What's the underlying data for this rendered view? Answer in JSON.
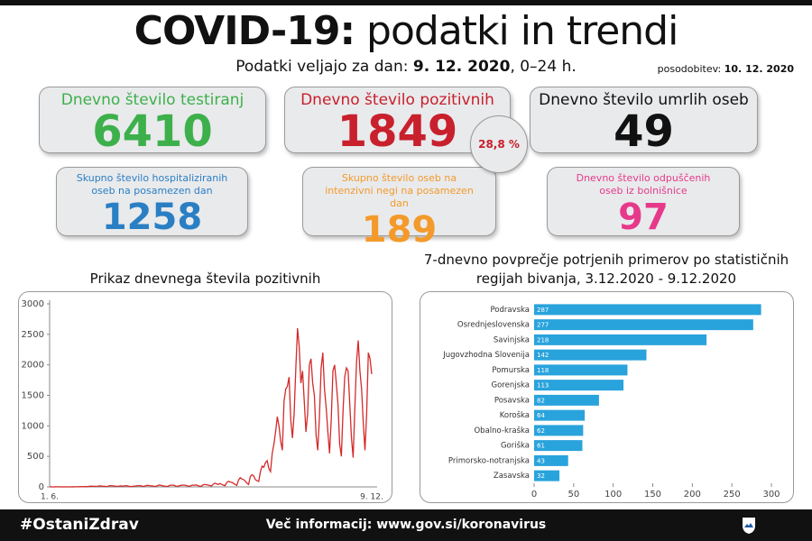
{
  "header": {
    "title_bold": "COVID-19:",
    "title_rest": "podatki in trendi",
    "subtitle_prefix": "Podatki veljajo za dan:",
    "subtitle_date": "9. 12. 2020",
    "subtitle_suffix": ", 0–24 h.",
    "updated_prefix": "posodobitev:",
    "updated_date": "10. 12. 2020"
  },
  "cards": [
    {
      "label": "Dnevno število testiranj",
      "value": "6410",
      "color": "#3db04b"
    },
    {
      "label": "Dnevno število pozitivnih",
      "value": "1849",
      "color": "#c8202c"
    },
    {
      "label": "Dnevno število umrlih oseb",
      "value": "49",
      "color": "#111111"
    },
    {
      "label": "Skupno število hospitaliziranih oseb na posamezen dan",
      "value": "1258",
      "color": "#2a7fc4"
    },
    {
      "label": "Skupno število oseb na intenzivni negi na posamezen dan",
      "value": "189",
      "color": "#f39a2b"
    },
    {
      "label": "Dnevno število odpuščenih oseb iz bolnišnice",
      "value": "97",
      "color": "#e6398a"
    }
  ],
  "badge": "28,8 %",
  "chart_data": [
    {
      "type": "line",
      "title": "Prikaz dnevnega števila pozitivnih",
      "color": "#d42a2a",
      "ylim": [
        0,
        3000
      ],
      "yticks": [
        0,
        500,
        1000,
        1500,
        2000,
        2500,
        3000
      ],
      "categories": [
        "1. 6.",
        null,
        null,
        null,
        null,
        null,
        null,
        null,
        null,
        null,
        null,
        null,
        null,
        null,
        null,
        null,
        null,
        null,
        null,
        null,
        null,
        null,
        null,
        null,
        null,
        null,
        null,
        null,
        null,
        null,
        null,
        null,
        null,
        null,
        null,
        null,
        null,
        null,
        null,
        null,
        null,
        null,
        null,
        null,
        null,
        null,
        null,
        null,
        null,
        null,
        null,
        null,
        null,
        null,
        null,
        null,
        null,
        null,
        null,
        null,
        null,
        null,
        null,
        null,
        null,
        null,
        null,
        null,
        null,
        null,
        null,
        null,
        null,
        null,
        null,
        null,
        null,
        null,
        null,
        null,
        null,
        null,
        null,
        null,
        null,
        null,
        null,
        null,
        null,
        null,
        null,
        null,
        null,
        null,
        null,
        null,
        null,
        null,
        null,
        null,
        null,
        null,
        null,
        null,
        null,
        null,
        null,
        null,
        null,
        null,
        null,
        null,
        null,
        null,
        null,
        null,
        null,
        null,
        null,
        null,
        null,
        null,
        null,
        null,
        null,
        null,
        null,
        null,
        null,
        null,
        null,
        null,
        null,
        null,
        null,
        null,
        null,
        null,
        null,
        null,
        null,
        null,
        null,
        null,
        null,
        null,
        null,
        null,
        null,
        null,
        null,
        null,
        null,
        null,
        null,
        null,
        null,
        null,
        null,
        null,
        null,
        null,
        null,
        null,
        null,
        null,
        null,
        null,
        null,
        null,
        null,
        null,
        null,
        null,
        null,
        null,
        null,
        null,
        null,
        null,
        null,
        null,
        null,
        null,
        null,
        null,
        null,
        null,
        null,
        null,
        null,
        "9. 12."
      ],
      "values": [
        2,
        1,
        0,
        1,
        3,
        2,
        1,
        0,
        1,
        2,
        0,
        1,
        0,
        2,
        1,
        3,
        2,
        4,
        3,
        5,
        4,
        6,
        3,
        8,
        10,
        12,
        9,
        11,
        8,
        14,
        16,
        12,
        10,
        8,
        6,
        14,
        20,
        18,
        15,
        12,
        8,
        10,
        16,
        14,
        12,
        20,
        18,
        10,
        6,
        8,
        12,
        15,
        20,
        18,
        22,
        10,
        8,
        20,
        25,
        22,
        18,
        15,
        10,
        8,
        20,
        30,
        25,
        18,
        12,
        10,
        6,
        22,
        28,
        30,
        24,
        12,
        8,
        20,
        25,
        30,
        28,
        22,
        14,
        10,
        24,
        30,
        28,
        32,
        20,
        12,
        10,
        34,
        40,
        35,
        30,
        22,
        15,
        45,
        60,
        50,
        40,
        55,
        42,
        30,
        20,
        70,
        90,
        80,
        75,
        60,
        40,
        25,
        110,
        150,
        130,
        120,
        95,
        60,
        40,
        170,
        200,
        180,
        120,
        100,
        90,
        250,
        340,
        320,
        400,
        430,
        300,
        250,
        550,
        700,
        900,
        1150,
        1000,
        750,
        600,
        1400,
        1600,
        1650,
        1800,
        1100,
        800,
        1200,
        1950,
        2600,
        2300,
        1700,
        1900,
        1400,
        900,
        1200,
        2000,
        2100,
        1700,
        1500,
        850,
        600,
        1150,
        1950,
        2200,
        1600,
        1300,
        900,
        550,
        1100,
        1900,
        2000,
        1700,
        1350,
        700,
        500,
        1250,
        1800,
        1950,
        1900,
        1350,
        800,
        480,
        1300,
        2050,
        2400,
        1900,
        1600,
        1050,
        600,
        1200,
        2200,
        2100,
        1849
      ]
    },
    {
      "type": "hbar",
      "title": "7-dnevno povprečje potrjenih primerov po statističnih regijah bivanja, 3.12.2020 - 9.12.2020",
      "color": "#29a3dc",
      "categories": [
        "Podravska",
        "Osrednjeslovenska",
        "Savinjska",
        "Jugovzhodna Slovenija",
        "Pomurska",
        "Gorenjska",
        "Posavska",
        "Koroška",
        "Obalno-kraška",
        "Goriška",
        "Primorsko-notranjska",
        "Zasavska"
      ],
      "values": [
        287,
        277,
        218,
        142,
        118,
        113,
        82,
        64,
        62,
        61,
        43,
        32
      ],
      "xlim": [
        0,
        300
      ],
      "xticks": [
        0,
        50,
        100,
        150,
        200,
        250,
        300
      ]
    }
  ],
  "footer": {
    "hashtag": "#OstaniZdrav",
    "info": "Več informacij: www.gov.si/koronavirus"
  }
}
